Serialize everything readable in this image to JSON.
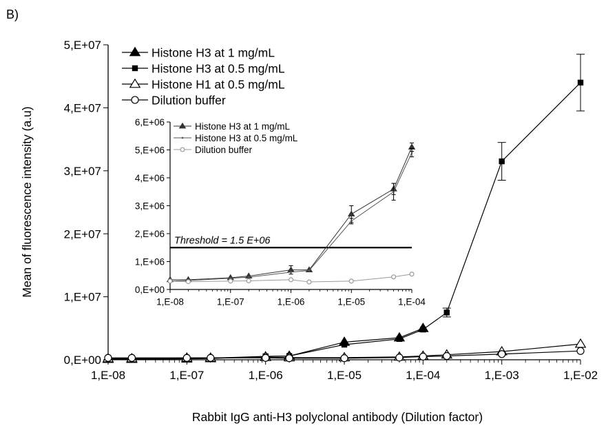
{
  "panel_label": "B)",
  "chart_data": [
    {
      "type": "line",
      "chart": "main",
      "xlabel": "Rabbit IgG anti-H3 polyclonal antibody (Dilution factor)",
      "ylabel": "Mean of fluorescence intensity (a.u)",
      "x_scale": "log",
      "xlim": [
        1e-08,
        0.01
      ],
      "ylim": [
        0,
        50000000
      ],
      "x_tick_labels": [
        "1,E-08",
        "1,E-07",
        "1,E-06",
        "1,E-05",
        "1,E-04",
        "1,E-03",
        "1,E-02"
      ],
      "y_tick_labels": [
        "0,E+00",
        "1,E+07",
        "2,E+07",
        "3,E+07",
        "4,E+07",
        "5,E+07"
      ],
      "legend_position": "top-left",
      "colors": {
        "line": "#000000",
        "hollow_fill": "#ffffff"
      },
      "series": [
        {
          "name": "Histone H3 at 1 mg/mL",
          "marker": "filled-triangle",
          "x": [
            1e-08,
            2e-08,
            1e-07,
            2e-07,
            1e-06,
            2e-06,
            1e-05,
            5e-05,
            0.0001
          ],
          "y": [
            100000,
            100000,
            150000,
            200000,
            500000,
            600000,
            2800000,
            3500000,
            5000000
          ]
        },
        {
          "name": "Histone H3 at 0.5 mg/mL",
          "marker": "filled-square",
          "x": [
            1e-08,
            2e-08,
            1e-07,
            2e-07,
            1e-06,
            2e-06,
            1e-05,
            5e-05,
            0.0001,
            0.0002,
            0.001,
            0.01
          ],
          "y": [
            150000,
            150000,
            200000,
            250000,
            550000,
            600000,
            2400000,
            3300000,
            4800000,
            7500000,
            31500000,
            44000000
          ],
          "error": [
            0,
            0,
            0,
            0,
            0,
            0,
            0,
            0,
            0,
            700000,
            3000000,
            4500000
          ]
        },
        {
          "name": "Histone H1 at 0.5 mg/mL",
          "marker": "hollow-triangle",
          "x": [
            1e-08,
            2e-08,
            1e-07,
            2e-07,
            1e-06,
            2e-06,
            1e-05,
            5e-05,
            0.0001,
            0.0002,
            0.001,
            0.01
          ],
          "y": [
            200000,
            200000,
            300000,
            300000,
            400000,
            350000,
            350000,
            450000,
            600000,
            800000,
            1300000,
            2500000
          ]
        },
        {
          "name": "Dilution buffer",
          "marker": "hollow-circle",
          "x": [
            1e-08,
            2e-08,
            1e-07,
            2e-07,
            1e-06,
            2e-06,
            1e-05,
            5e-05,
            0.0001,
            0.0002,
            0.001,
            0.01
          ],
          "y": [
            300000,
            300000,
            300000,
            300000,
            300000,
            250000,
            250000,
            350000,
            500000,
            600000,
            900000,
            1400000
          ]
        }
      ]
    },
    {
      "type": "line",
      "chart": "inset",
      "x_scale": "log",
      "xlim": [
        1e-08,
        0.0001
      ],
      "ylim": [
        0,
        6000000
      ],
      "x_tick_labels": [
        "1,E-08",
        "1,E-07",
        "1,E-06",
        "1,E-05",
        "1,E-04"
      ],
      "y_tick_labels": [
        "0,E+00",
        "1,E+06",
        "2,E+06",
        "3,E+06",
        "4,E+06",
        "5,E+06",
        "6,E+06"
      ],
      "threshold": {
        "label": "Threshold = 1.5 E+06",
        "value": 1500000
      },
      "legend_position": "top-left",
      "colors": {
        "line": "#444444",
        "buffer_line": "#999999"
      },
      "series": [
        {
          "name": "Histone H3 at 1 mg/mL",
          "marker": "filled-triangle",
          "x": [
            1e-08,
            2e-08,
            1e-07,
            2e-07,
            1e-06,
            2e-06,
            1e-05,
            5e-05,
            0.0001
          ],
          "y": [
            350000,
            350000,
            420000,
            480000,
            700000,
            700000,
            2700000,
            3600000,
            5100000
          ],
          "error": [
            0,
            0,
            0,
            0,
            150000,
            0,
            300000,
            200000,
            150000
          ]
        },
        {
          "name": "Histone H3 at 0.5 mg/mL",
          "marker": "small-dot",
          "x": [
            1e-08,
            2e-08,
            1e-07,
            2e-07,
            1e-06,
            2e-06,
            1e-05,
            5e-05,
            0.0001
          ],
          "y": [
            300000,
            320000,
            400000,
            440000,
            620000,
            680000,
            2450000,
            3500000,
            4900000
          ],
          "error": [
            0,
            0,
            0,
            0,
            0,
            0,
            100000,
            300000,
            150000
          ]
        },
        {
          "name": "Dilution buffer",
          "marker": "hollow-circle",
          "x": [
            1e-08,
            2e-08,
            1e-07,
            2e-07,
            1e-06,
            2e-06,
            1e-05,
            5e-05,
            0.0001
          ],
          "y": [
            300000,
            280000,
            300000,
            310000,
            350000,
            270000,
            300000,
            450000,
            550000
          ]
        }
      ]
    }
  ]
}
